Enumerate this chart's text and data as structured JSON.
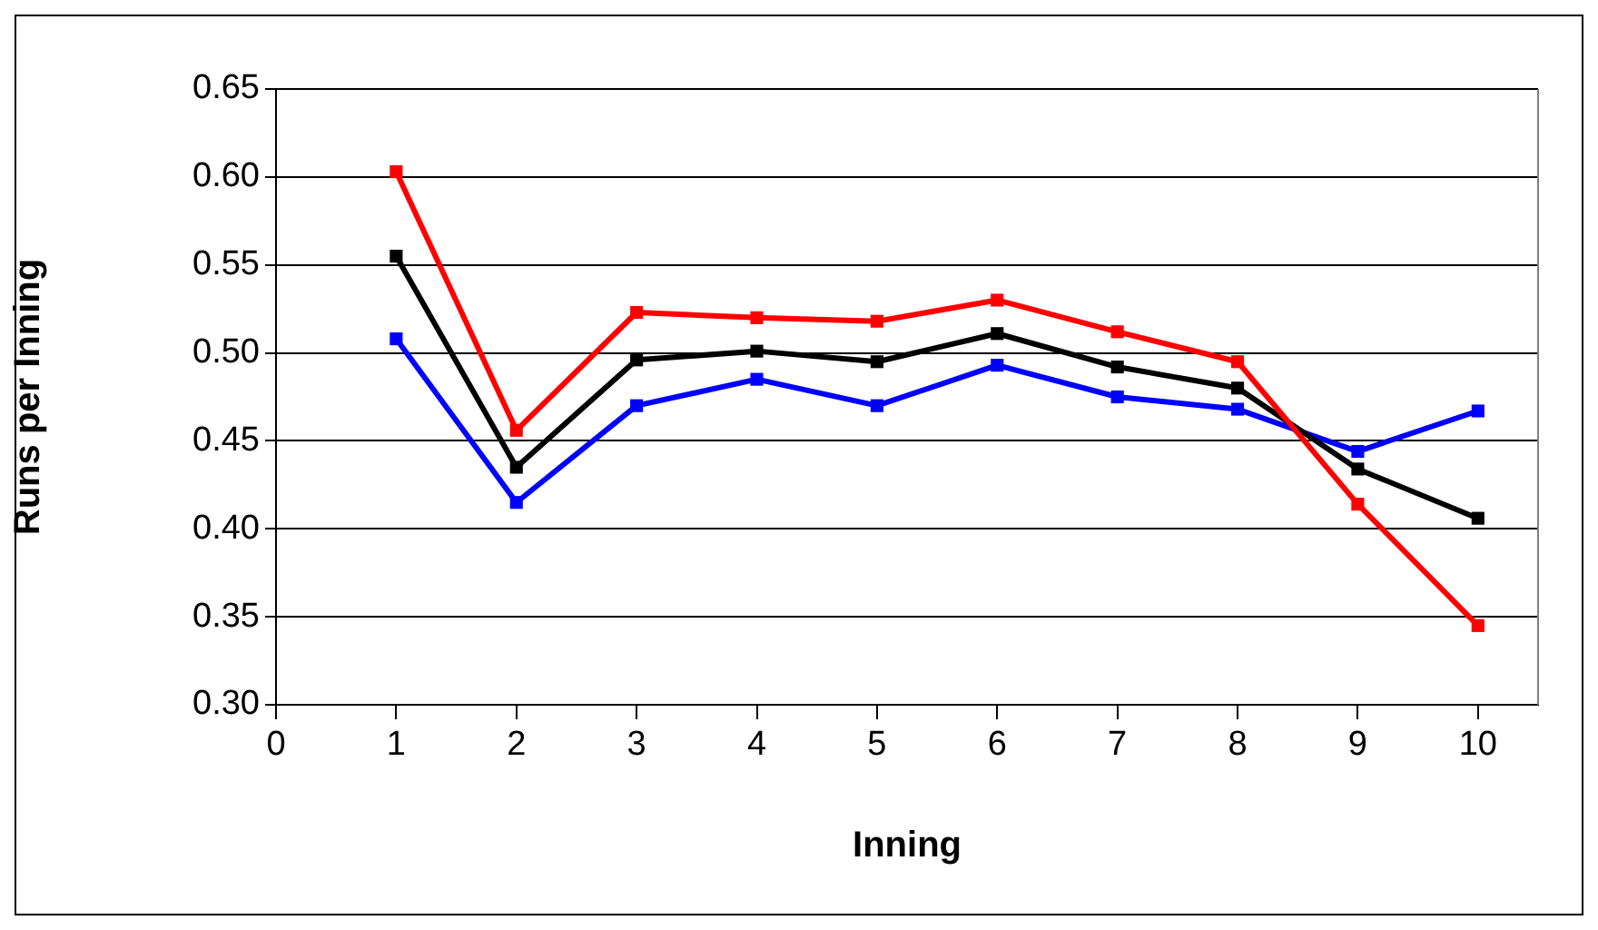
{
  "chart_data": {
    "type": "line",
    "xlabel": "Inning",
    "ylabel": "Runs per Inning",
    "x": [
      1,
      2,
      3,
      4,
      5,
      6,
      7,
      8,
      9,
      10
    ],
    "series": [
      {
        "color": "#ff0000",
        "values": [
          0.603,
          0.456,
          0.523,
          0.52,
          0.518,
          0.53,
          0.512,
          0.495,
          0.414,
          0.345
        ]
      },
      {
        "color": "#000000",
        "values": [
          0.555,
          0.435,
          0.496,
          0.501,
          0.495,
          0.511,
          0.492,
          0.48,
          0.434,
          0.406
        ]
      },
      {
        "color": "#0000ff",
        "values": [
          0.508,
          0.415,
          0.47,
          0.485,
          0.47,
          0.493,
          0.475,
          0.468,
          0.444,
          0.467
        ]
      }
    ],
    "xlim": [
      0,
      10.5
    ],
    "xticks": [
      0,
      1,
      2,
      3,
      4,
      5,
      6,
      7,
      8,
      9,
      10
    ],
    "ylim": [
      0.3,
      0.65
    ],
    "yticks": [
      {
        "value": 0.3,
        "label": "0.30"
      },
      {
        "value": 0.35,
        "label": "0.35"
      },
      {
        "value": 0.4,
        "label": "0.40"
      },
      {
        "value": 0.45,
        "label": "0.45"
      },
      {
        "value": 0.5,
        "label": "0.50"
      },
      {
        "value": 0.55,
        "label": "0.55"
      },
      {
        "value": 0.6,
        "label": "0.60"
      },
      {
        "value": 0.65,
        "label": "0.65"
      }
    ],
    "grid": "y",
    "legend": false,
    "marker": "square",
    "line_style": "solid"
  }
}
